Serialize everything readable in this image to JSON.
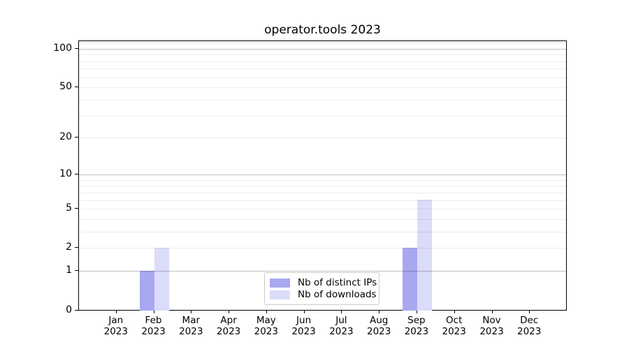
{
  "chart_data": {
    "type": "bar",
    "title": "operator.tools 2023",
    "x_year": "2023",
    "categories": [
      "Jan",
      "Feb",
      "Mar",
      "Apr",
      "May",
      "Jun",
      "Jul",
      "Aug",
      "Sep",
      "Oct",
      "Nov",
      "Dec"
    ],
    "series": [
      {
        "name": "Nb of distinct IPs",
        "color": "#a8a8f1",
        "values": [
          0,
          1,
          0,
          0,
          0,
          0,
          0,
          0,
          2,
          0,
          0,
          0
        ]
      },
      {
        "name": "Nb of downloads",
        "color": "#dbdbfa",
        "values": [
          0,
          2,
          0,
          0,
          0,
          0,
          0,
          0,
          6,
          0,
          0,
          0
        ]
      }
    ],
    "yscale": "log1p",
    "ylim": [
      0,
      117
    ],
    "ytick_values": [
      0,
      1,
      2,
      5,
      10,
      20,
      50,
      100
    ],
    "ytick_labels": [
      "0",
      "1",
      "2",
      "5",
      "10",
      "20",
      "50",
      "100"
    ],
    "grid": true,
    "grid_major_values": [
      1,
      10,
      100
    ],
    "grid_minor_values": [
      2,
      3,
      4,
      5,
      6,
      7,
      8,
      9,
      20,
      30,
      40,
      50,
      60,
      70,
      80,
      90,
      110
    ],
    "legend_position": "bottom-center"
  },
  "legend": {
    "items": [
      {
        "label": "Nb of distinct IPs",
        "color": "#a8a8f1"
      },
      {
        "label": "Nb of downloads",
        "color": "#dbdbfa"
      }
    ]
  },
  "colors": {
    "background": "#ffffff",
    "axis": "#000000",
    "bar_distinct_ips": "#a8a8f1",
    "bar_downloads": "#dbdbfa",
    "grid_major": "#c2c2c2",
    "grid_minor": "#ededed",
    "legend_border": "#cccccc"
  }
}
